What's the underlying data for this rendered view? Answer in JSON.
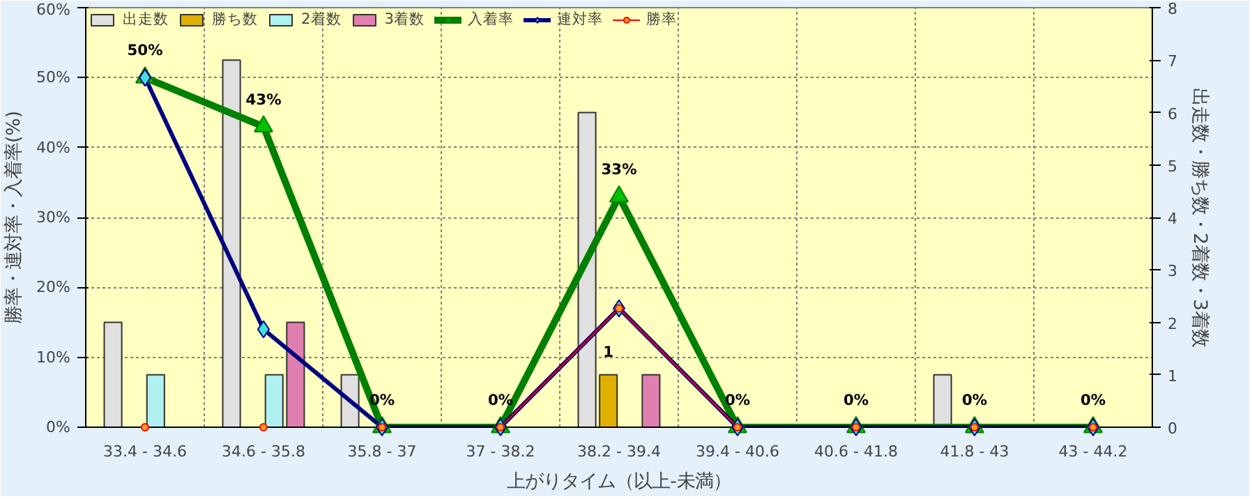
{
  "chart_data": {
    "type": "bar",
    "xlabel": "上がりタイム（以上-未満）",
    "ylabel": "勝率・連対率・入着率(%)",
    "y2label": "出走数・勝ち数・2着数・3着数",
    "categories": [
      "33.4 - 34.6",
      "34.6 - 35.8",
      "35.8 - 37",
      "37 - 38.2",
      "38.2 - 39.4",
      "39.4 - 40.6",
      "40.6 - 41.8",
      "41.8 - 43",
      "43 - 44.2"
    ],
    "ylim": [
      0,
      60
    ],
    "yticks": [
      {
        "value": 0,
        "label": "0%"
      },
      {
        "value": 10,
        "label": "10%"
      },
      {
        "value": 20,
        "label": "20%"
      },
      {
        "value": 30,
        "label": "30%"
      },
      {
        "value": 40,
        "label": "40%"
      },
      {
        "value": 50,
        "label": "50%"
      },
      {
        "value": 60,
        "label": "60%"
      }
    ],
    "y2lim": [
      0,
      8
    ],
    "y2ticks": [
      0,
      1,
      2,
      3,
      4,
      5,
      6,
      7,
      8
    ],
    "grid": true,
    "legend": "top",
    "series": [
      {
        "name": "出走数",
        "axis": "y2",
        "color": "#e0e0e0",
        "values": [
          2,
          7,
          1,
          0,
          6,
          0,
          0,
          1,
          0
        ]
      },
      {
        "name": "勝ち数",
        "axis": "y2",
        "color": "#e0b000",
        "values": [
          0,
          0,
          0,
          0,
          1,
          0,
          0,
          0,
          0
        ],
        "value_labels": [
          null,
          null,
          null,
          null,
          "1",
          null,
          null,
          null,
          null
        ]
      },
      {
        "name": "2着数",
        "axis": "y2",
        "color": "#b0f0f0",
        "values": [
          1,
          1,
          0,
          0,
          0,
          0,
          0,
          0,
          0
        ]
      },
      {
        "name": "3着数",
        "axis": "y2",
        "color": "#e080b0",
        "values": [
          0,
          2,
          0,
          0,
          1,
          0,
          0,
          0,
          0
        ]
      },
      {
        "name": "入着率",
        "type": "line",
        "color": "#008000",
        "marker": "triangle",
        "values": [
          50,
          43,
          0,
          0,
          33,
          0,
          0,
          0,
          0
        ],
        "value_labels": [
          "50%",
          "43%",
          "0%",
          "0%",
          "33%",
          "0%",
          "0%",
          "0%",
          "0%"
        ]
      },
      {
        "name": "連対率",
        "type": "line",
        "color": "#000080",
        "marker": "diamond",
        "values": [
          50,
          14,
          0,
          0,
          17,
          0,
          0,
          0,
          0
        ]
      },
      {
        "name": "勝率",
        "type": "line",
        "color": "#ff0000",
        "marker": "circle",
        "values": [
          0,
          0,
          0,
          0,
          17,
          0,
          0,
          0,
          0
        ]
      }
    ]
  }
}
